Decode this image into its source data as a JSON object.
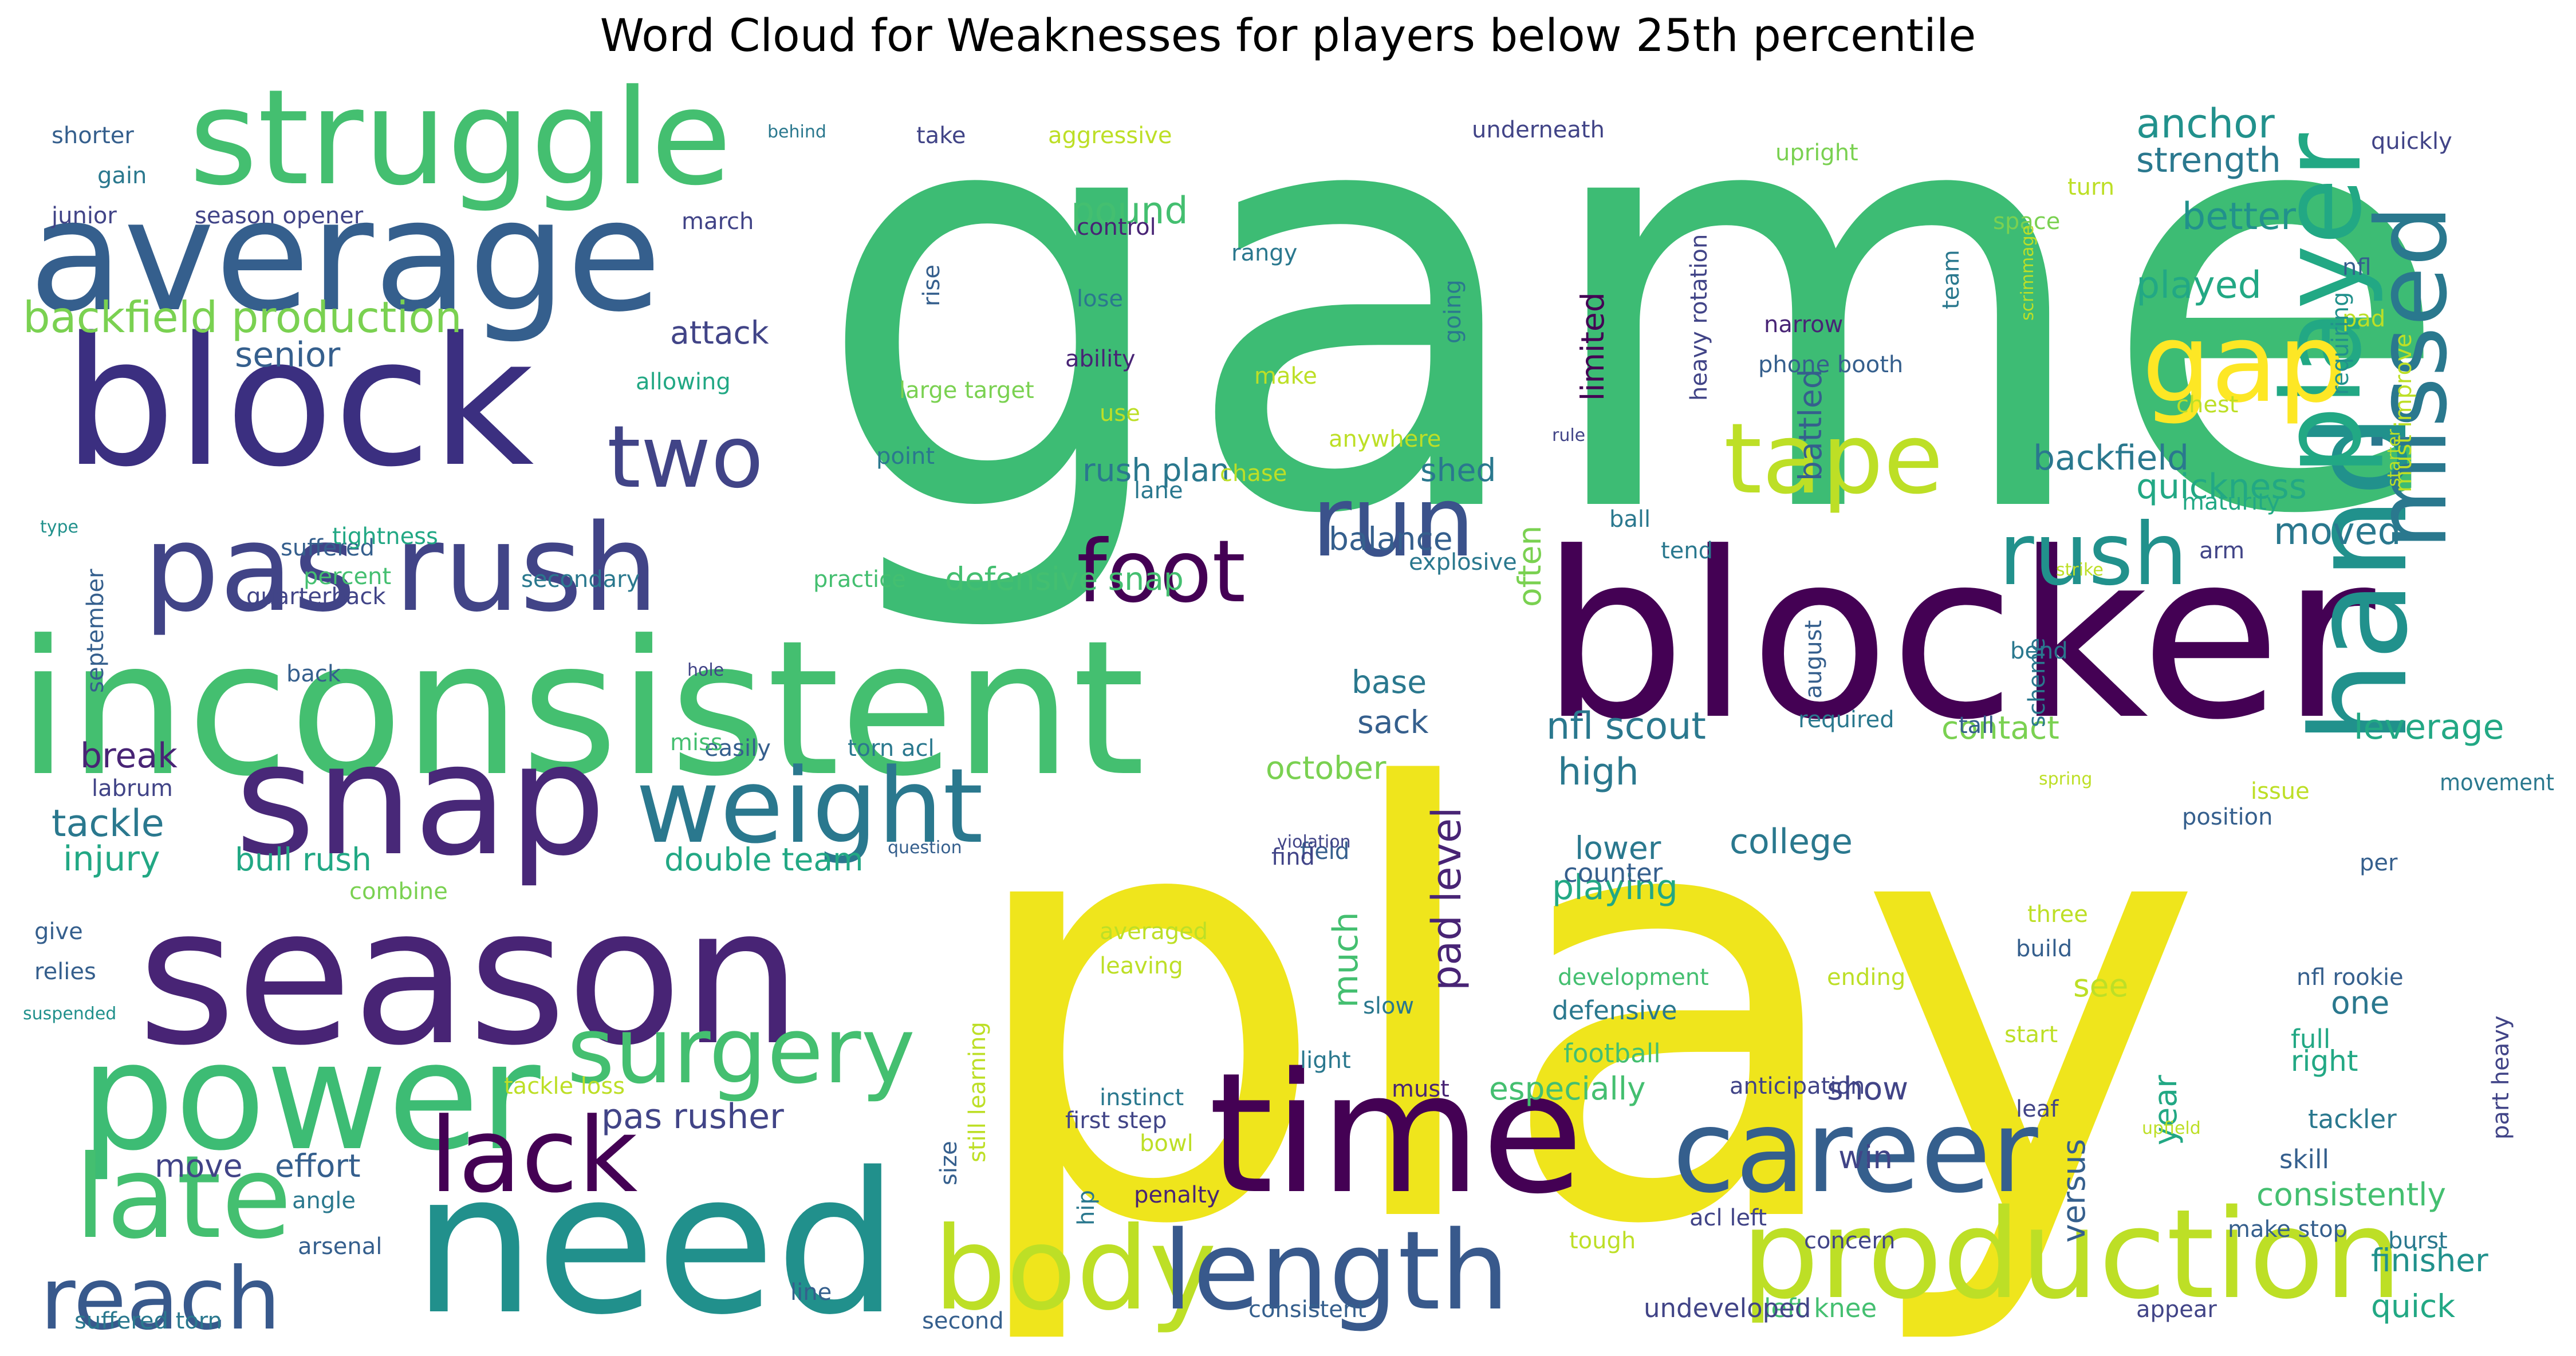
{
  "title": "Word Cloud for Weaknesses for players below 25th percentile",
  "palette": {
    "p1": "#440154",
    "p2": "#482475",
    "p3": "#414487",
    "p4": "#355f8d",
    "p5": "#2a788e",
    "p6": "#21918c",
    "p7": "#22a884",
    "p8": "#44bf70",
    "p9": "#7ad151",
    "p10": "#bddf26",
    "p11": "#fde725"
  },
  "words": [
    {
      "text": "game",
      "color": "#3dbc74"
    },
    {
      "text": "play",
      "color": "#efe51c"
    },
    {
      "text": "blocker",
      "color": "#440154"
    },
    {
      "text": "inconsistent",
      "color": "#44bf70"
    },
    {
      "text": "season",
      "color": "#482475"
    },
    {
      "text": "need",
      "color": "#21908c"
    },
    {
      "text": "time",
      "color": "#440154"
    },
    {
      "text": "average",
      "color": "#355f8d"
    },
    {
      "text": "block",
      "color": "#3b2f80"
    },
    {
      "text": "struggle",
      "color": "#44bf70"
    },
    {
      "text": "power",
      "color": "#3dbc74"
    },
    {
      "text": "hand",
      "color": "#21918c"
    },
    {
      "text": "production",
      "color": "#bddf26"
    },
    {
      "text": "snap",
      "color": "#482878"
    },
    {
      "text": "pas rush",
      "color": "#414487"
    },
    {
      "text": "career",
      "color": "#355f8d"
    },
    {
      "text": "player",
      "color": "#22a884"
    },
    {
      "text": "missed",
      "color": "#2a788e"
    },
    {
      "text": "body",
      "color": "#bddf26"
    },
    {
      "text": "length",
      "color": "#38598c"
    },
    {
      "text": "late",
      "color": "#44bf70"
    },
    {
      "text": "reach",
      "color": "#38598c"
    },
    {
      "text": "lack",
      "color": "#440154"
    },
    {
      "text": "weight",
      "color": "#2a788e"
    },
    {
      "text": "surgery",
      "color": "#44bf70"
    },
    {
      "text": "foot",
      "color": "#440154"
    },
    {
      "text": "run",
      "color": "#3b528b"
    },
    {
      "text": "tape",
      "color": "#bddf26"
    },
    {
      "text": "rush",
      "color": "#21918c"
    },
    {
      "text": "gap",
      "color": "#fde725"
    },
    {
      "text": "two",
      "color": "#414487"
    },
    {
      "text": "backfield production",
      "color": "#7ad151"
    },
    {
      "text": "anchor",
      "color": "#21918c"
    },
    {
      "text": "strength",
      "color": "#2a788e"
    },
    {
      "text": "better",
      "color": "#21918c"
    },
    {
      "text": "played",
      "color": "#22a884"
    },
    {
      "text": "backfield",
      "color": "#2a788e"
    },
    {
      "text": "quickness",
      "color": "#22a884"
    },
    {
      "text": "moved",
      "color": "#2a788e"
    },
    {
      "text": "leverage",
      "color": "#22a884"
    },
    {
      "text": "contact",
      "color": "#7ad151"
    },
    {
      "text": "nfl scout",
      "color": "#2a788e"
    },
    {
      "text": "high",
      "color": "#2a788e"
    },
    {
      "text": "college",
      "color": "#2a788e"
    },
    {
      "text": "playing",
      "color": "#22a884"
    },
    {
      "text": "lower",
      "color": "#2a788e"
    },
    {
      "text": "pad level",
      "color": "#482475"
    },
    {
      "text": "much",
      "color": "#44bf70"
    },
    {
      "text": "often",
      "color": "#7ad151"
    },
    {
      "text": "limited",
      "color": "#440154"
    },
    {
      "text": "battled",
      "color": "#355f8d"
    },
    {
      "text": "sack",
      "color": "#355f8d"
    },
    {
      "text": "october",
      "color": "#7ad151"
    },
    {
      "text": "base",
      "color": "#2a788e"
    },
    {
      "text": "balance",
      "color": "#355f8d"
    },
    {
      "text": "rush plan",
      "color": "#2a788e"
    },
    {
      "text": "shed",
      "color": "#2a788e"
    },
    {
      "text": "defensive snap",
      "color": "#44bf70"
    },
    {
      "text": "pound",
      "color": "#44bf70"
    },
    {
      "text": "attack",
      "color": "#414487"
    },
    {
      "text": "senior",
      "color": "#355f8d"
    },
    {
      "text": "tackle",
      "color": "#2a788e"
    },
    {
      "text": "injury",
      "color": "#22a884"
    },
    {
      "text": "break",
      "color": "#482475"
    },
    {
      "text": "bull rush",
      "color": "#22a884"
    },
    {
      "text": "double team",
      "color": "#22a884"
    },
    {
      "text": "pas rusher",
      "color": "#414487"
    },
    {
      "text": "move",
      "color": "#414487"
    },
    {
      "text": "effort",
      "color": "#355f8d"
    },
    {
      "text": "especially",
      "color": "#44bf70"
    },
    {
      "text": "show",
      "color": "#414487"
    },
    {
      "text": "win",
      "color": "#414487"
    },
    {
      "text": "versus",
      "color": "#355f8d"
    },
    {
      "text": "year",
      "color": "#22a884"
    },
    {
      "text": "consistently",
      "color": "#44bf70"
    },
    {
      "text": "finisher",
      "color": "#21918c"
    },
    {
      "text": "quick",
      "color": "#22a884"
    },
    {
      "text": "see",
      "color": "#bddf26"
    },
    {
      "text": "one",
      "color": "#2a788e"
    },
    {
      "text": "right",
      "color": "#22a884"
    },
    {
      "text": "tackler",
      "color": "#2a788e"
    },
    {
      "text": "skill",
      "color": "#355f8d"
    },
    {
      "text": "full",
      "color": "#22a884"
    },
    {
      "text": "burst",
      "color": "#2a788e"
    },
    {
      "text": "make stop",
      "color": "#355f8d"
    },
    {
      "text": "appear",
      "color": "#414487"
    },
    {
      "text": "left knee",
      "color": "#44bf70"
    },
    {
      "text": "undeveloped",
      "color": "#414487"
    },
    {
      "text": "consistent",
      "color": "#355f8d"
    },
    {
      "text": "concern",
      "color": "#414487"
    },
    {
      "text": "acl left",
      "color": "#414487"
    },
    {
      "text": "anticipation",
      "color": "#414487"
    },
    {
      "text": "must",
      "color": "#482475"
    },
    {
      "text": "light",
      "color": "#2a788e"
    },
    {
      "text": "first step",
      "color": "#414487"
    },
    {
      "text": "instinct",
      "color": "#2a788e"
    },
    {
      "text": "hip",
      "color": "#2a788e"
    },
    {
      "text": "size",
      "color": "#355f8d"
    },
    {
      "text": "still learning",
      "color": "#bddf26"
    },
    {
      "text": "slow",
      "color": "#2a788e"
    },
    {
      "text": "defensive",
      "color": "#2a788e"
    },
    {
      "text": "football",
      "color": "#44bf70"
    },
    {
      "text": "development",
      "color": "#44bf70"
    },
    {
      "text": "counter",
      "color": "#355f8d"
    },
    {
      "text": "field",
      "color": "#355f8d"
    },
    {
      "text": "averaged",
      "color": "#bddf26"
    },
    {
      "text": "leaving",
      "color": "#bddf26"
    },
    {
      "text": "tackle loss",
      "color": "#bddf26"
    },
    {
      "text": "arsenal",
      "color": "#355f8d"
    },
    {
      "text": "angle",
      "color": "#2a788e"
    },
    {
      "text": "suffered torn",
      "color": "#2a788e"
    },
    {
      "text": "second",
      "color": "#355f8d"
    },
    {
      "text": "relies",
      "color": "#355f8d"
    },
    {
      "text": "give",
      "color": "#355f8d"
    },
    {
      "text": "suspended",
      "color": "#21918c"
    },
    {
      "text": "labrum",
      "color": "#414487"
    },
    {
      "text": "combine",
      "color": "#7ad151"
    },
    {
      "text": "easily",
      "color": "#355f8d"
    },
    {
      "text": "torn acl",
      "color": "#2a788e"
    },
    {
      "text": "find",
      "color": "#414487"
    },
    {
      "text": "question",
      "color": "#355f8d"
    },
    {
      "text": "violation",
      "color": "#414487"
    },
    {
      "text": "miss",
      "color": "#44bf70"
    },
    {
      "text": "back",
      "color": "#355f8d"
    },
    {
      "text": "hole",
      "color": "#414487"
    },
    {
      "text": "quarterback",
      "color": "#414487"
    },
    {
      "text": "september",
      "color": "#355f8d"
    },
    {
      "text": "type",
      "color": "#21918c"
    },
    {
      "text": "suffered",
      "color": "#355f8d"
    },
    {
      "text": "percent",
      "color": "#44bf70"
    },
    {
      "text": "tightness",
      "color": "#22a884"
    },
    {
      "text": "secondary",
      "color": "#2a788e"
    },
    {
      "text": "practice",
      "color": "#44bf70"
    },
    {
      "text": "allowing",
      "color": "#22a884"
    },
    {
      "text": "point",
      "color": "#2a788e"
    },
    {
      "text": "lane",
      "color": "#2a788e"
    },
    {
      "text": "chase",
      "color": "#bddf26"
    },
    {
      "text": "anywhere",
      "color": "#bddf26"
    },
    {
      "text": "explosive",
      "color": "#2a788e"
    },
    {
      "text": "shorter",
      "color": "#355f8d"
    },
    {
      "text": "gain",
      "color": "#2a788e"
    },
    {
      "text": "junior",
      "color": "#414487"
    },
    {
      "text": "season opener",
      "color": "#414487"
    },
    {
      "text": "march",
      "color": "#414487"
    },
    {
      "text": "behind",
      "color": "#2a788e"
    },
    {
      "text": "take",
      "color": "#414487"
    },
    {
      "text": "aggressive",
      "color": "#bddf26"
    },
    {
      "text": "control",
      "color": "#482475"
    },
    {
      "text": "rise",
      "color": "#355f8d"
    },
    {
      "text": "lose",
      "color": "#2a788e"
    },
    {
      "text": "ability",
      "color": "#482475"
    },
    {
      "text": "large target",
      "color": "#7ad151"
    },
    {
      "text": "make",
      "color": "#bddf26"
    },
    {
      "text": "use",
      "color": "#bddf26"
    },
    {
      "text": "rangy",
      "color": "#2a788e"
    },
    {
      "text": "going",
      "color": "#2a788e"
    },
    {
      "text": "underneath",
      "color": "#414487"
    },
    {
      "text": "heavy rotation",
      "color": "#414487"
    },
    {
      "text": "narrow",
      "color": "#482475"
    },
    {
      "text": "phone booth",
      "color": "#355f8d"
    },
    {
      "text": "team",
      "color": "#2a788e"
    },
    {
      "text": "space",
      "color": "#7ad151"
    },
    {
      "text": "upright",
      "color": "#7ad151"
    },
    {
      "text": "turn",
      "color": "#bddf26"
    },
    {
      "text": "scrimmage",
      "color": "#bddf26"
    },
    {
      "text": "chest",
      "color": "#bddf26"
    },
    {
      "text": "rule",
      "color": "#414487"
    },
    {
      "text": "quickly",
      "color": "#414487"
    },
    {
      "text": "nfl",
      "color": "#355f8d"
    },
    {
      "text": "pad",
      "color": "#bddf26"
    },
    {
      "text": "must improve",
      "color": "#bddf26"
    },
    {
      "text": "requiring",
      "color": "#21918c"
    },
    {
      "text": "starter",
      "color": "#bddf26"
    },
    {
      "text": "maturity",
      "color": "#22a884"
    },
    {
      "text": "arm",
      "color": "#414487"
    },
    {
      "text": "ball",
      "color": "#2a788e"
    },
    {
      "text": "tend",
      "color": "#2a788e"
    },
    {
      "text": "strike",
      "color": "#bddf26"
    },
    {
      "text": "august",
      "color": "#355f8d"
    },
    {
      "text": "bend",
      "color": "#2a788e"
    },
    {
      "text": "scheme",
      "color": "#2a788e"
    },
    {
      "text": "required",
      "color": "#2a788e"
    },
    {
      "text": "tall",
      "color": "#355f8d"
    },
    {
      "text": "spring",
      "color": "#bddf26"
    },
    {
      "text": "issue",
      "color": "#bddf26"
    },
    {
      "text": "movement",
      "color": "#2a788e"
    },
    {
      "text": "position",
      "color": "#355f8d"
    },
    {
      "text": "per",
      "color": "#355f8d"
    },
    {
      "text": "three",
      "color": "#bddf26"
    },
    {
      "text": "build",
      "color": "#355f8d"
    },
    {
      "text": "ending",
      "color": "#bddf26"
    },
    {
      "text": "nfl rookie",
      "color": "#355f8d"
    },
    {
      "text": "start",
      "color": "#bddf26"
    },
    {
      "text": "leaf",
      "color": "#414487"
    },
    {
      "text": "upfield",
      "color": "#bddf26"
    },
    {
      "text": "part heavy",
      "color": "#414487"
    },
    {
      "text": "tough",
      "color": "#bddf26"
    },
    {
      "text": "bowl",
      "color": "#bddf26"
    },
    {
      "text": "penalty",
      "color": "#482475"
    },
    {
      "text": "line",
      "color": "#355f8d"
    }
  ]
}
